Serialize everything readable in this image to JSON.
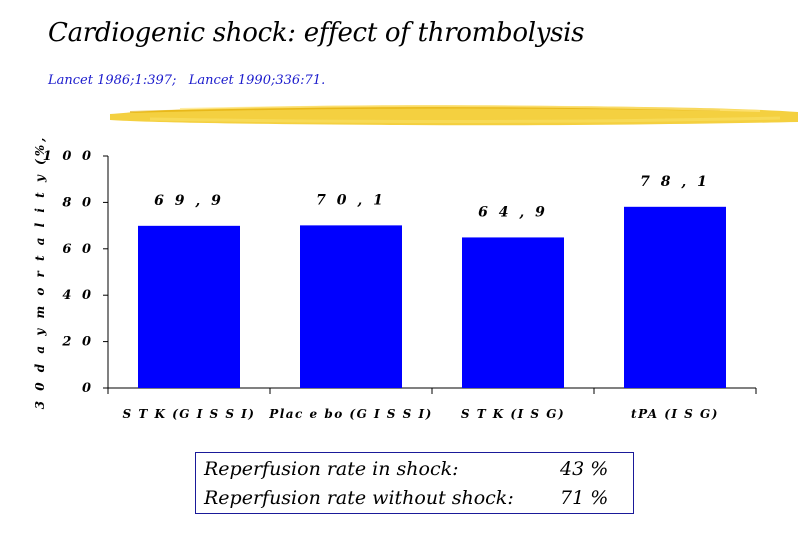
{
  "slide": {
    "title": "Cardiogenic shock: effect of thrombolysis",
    "references": "Lancet 1986;1:397;   Lancet 1990;336:71."
  },
  "colors": {
    "bar": "#0000ff",
    "reference_text": "#1a1acc",
    "highlight_brush": "#f2c81e",
    "box_border": "#1a1a99"
  },
  "chart_data": {
    "type": "bar",
    "categories": [
      "S T K  (G I S S I)",
      "Plac e bo  (G I S S I)",
      "S T K  (I S G)",
      "tPA (I S G)"
    ],
    "values": [
      69.9,
      70.1,
      64.9,
      78.1
    ],
    "data_labels": [
      "6 9 , 9",
      "7 0 , 1",
      "6 4 , 9",
      "7 8 , 1"
    ],
    "ylabel": "3 0  d a y  m o r t a l i t y  (%,",
    "ylim": [
      0,
      100
    ],
    "yticks": [
      "0",
      "2 0",
      "4 0",
      "6 0",
      "8 0",
      "1 0 0"
    ],
    "ytick_values": [
      0,
      20,
      40,
      60,
      80,
      100
    ],
    "grid": false,
    "legend": "none"
  },
  "notes": {
    "rows": [
      {
        "label": "Reperfusion rate in shock:",
        "value": "43 %"
      },
      {
        "label": "Reperfusion rate without shock:",
        "value": "71 %"
      }
    ]
  }
}
